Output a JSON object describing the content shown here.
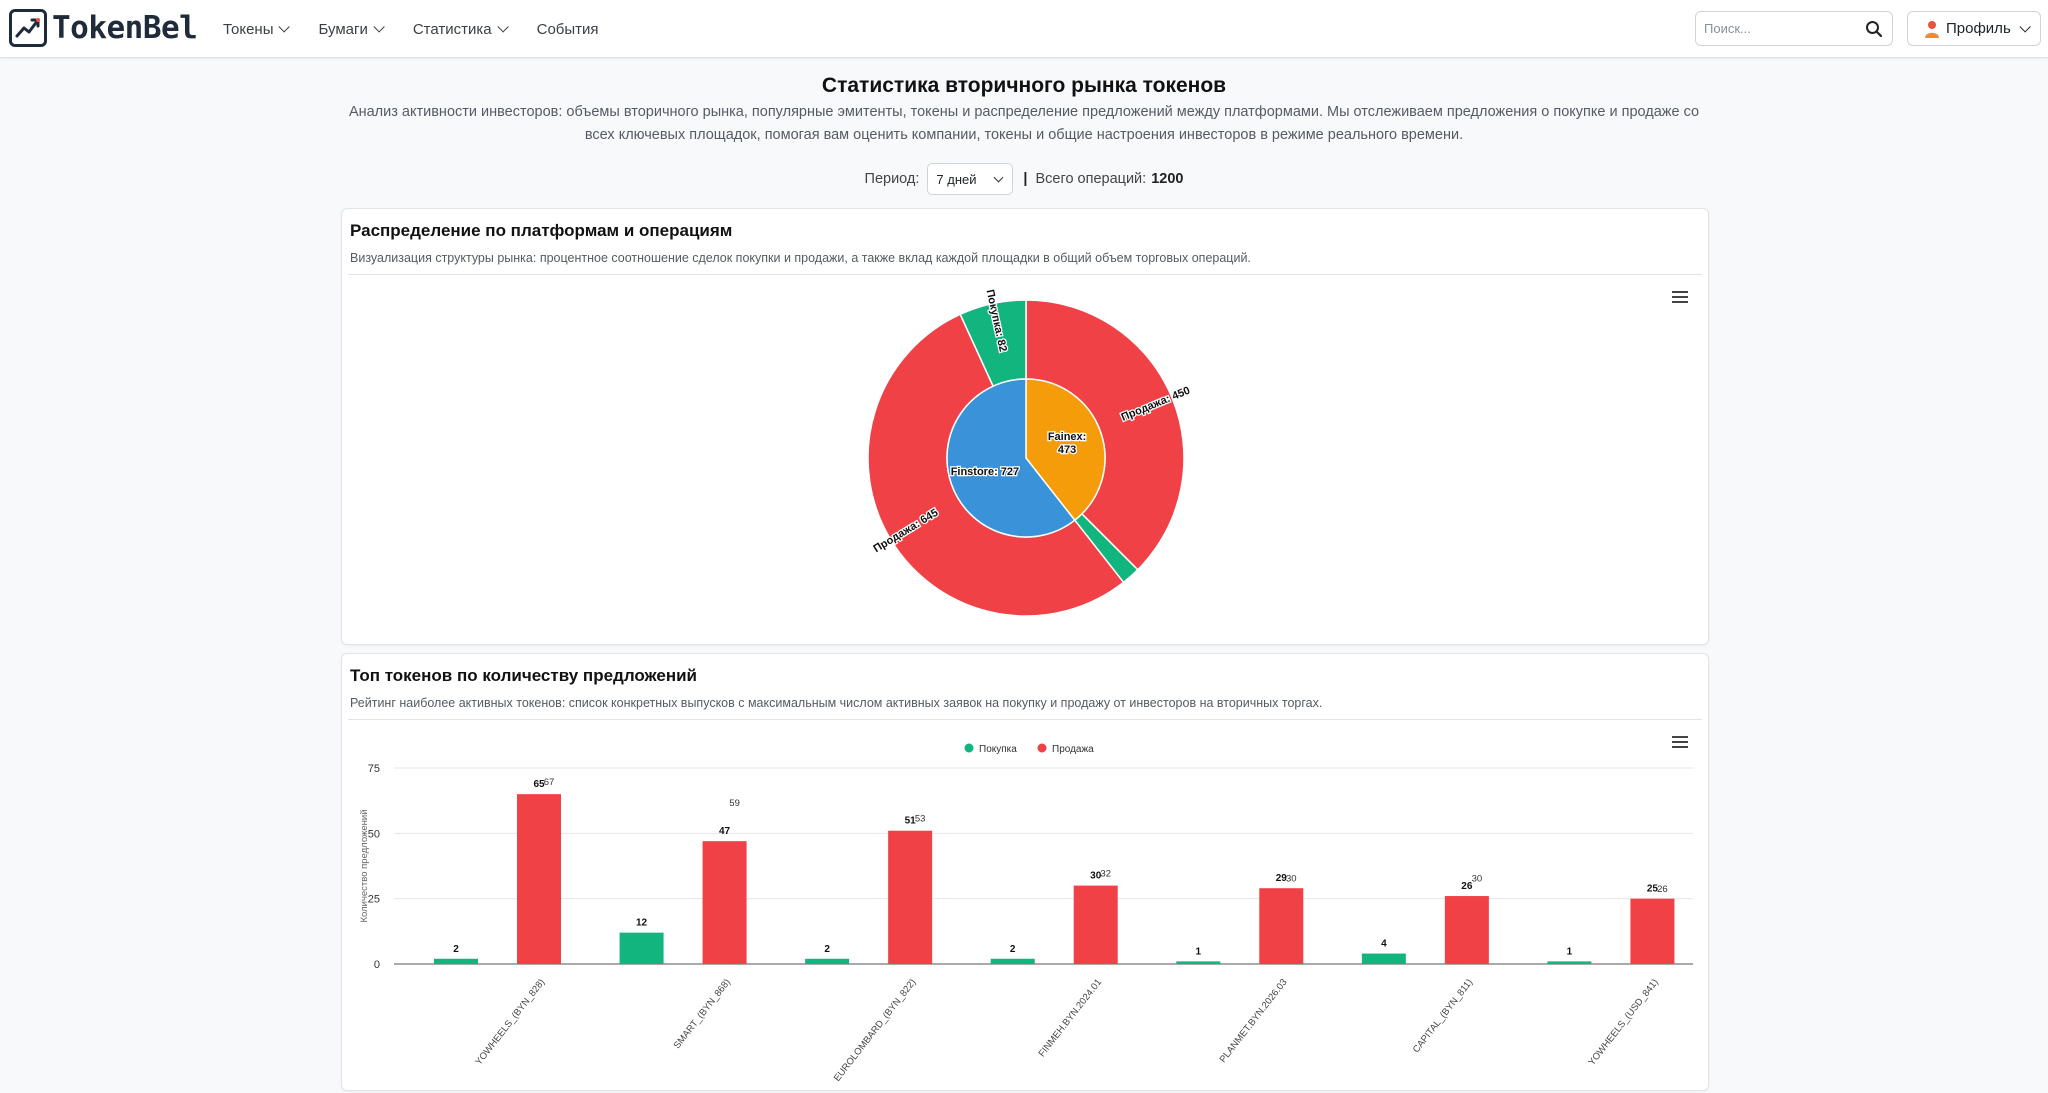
{
  "navbar": {
    "logo_text": "TokenBel",
    "links": [
      {
        "label": "Токены",
        "dropdown": true
      },
      {
        "label": "Бумаги",
        "dropdown": true
      },
      {
        "label": "Статистика",
        "dropdown": true
      },
      {
        "label": "События",
        "dropdown": false
      }
    ],
    "search_placeholder": "Поиск...",
    "profile_label": "Профиль",
    "icons": [
      "chart-line-icon",
      "search-icon",
      "user-icon",
      "chevron-down-icon"
    ]
  },
  "header": {
    "title": "Статистика вторичного рынка токенов",
    "description": "Анализ активности инвесторов: объемы вторичного рынка, популярные эмитенты, токены и распределение предложений между платформами. Мы отслеживаем предложения о покупке и продаже со всех ключевых площадок, помогая вам оценить компании, токены и общие настроения инвесторов в режиме реального времени.",
    "period_label": "Период:",
    "period_value": "7 дней",
    "separator": "|",
    "total_label": "Всего операций:",
    "total_value": "1200"
  },
  "colors": {
    "buy": "#13b57f",
    "sell": "#ef4146",
    "finstore": "#3a93d9",
    "fainex": "#f59c0b"
  },
  "card1": {
    "title": "Распределение по платформам и операциям",
    "description": "Визуализация структуры рынка: процентное соотношение сделок покупки и продажи, а также вклад каждой площадки в общий объем торговых операций."
  },
  "card2": {
    "title": "Топ токенов по количеству предложений",
    "description": "Рейтинг наиболее активных токенов: список конкретных выпусков с максимальным числом активных заявок на покупку и продажу от инвесторов на вторичных торгах."
  },
  "chart_data": [
    {
      "type": "pie",
      "inner": [
        {
          "name": "Fainex",
          "value": 473,
          "label": "Fainex: 473"
        },
        {
          "name": "Finstore",
          "value": 727,
          "label": "Finstore: 727"
        }
      ],
      "outer": [
        {
          "platform": "Fainex",
          "op": "Продажа",
          "value": 450,
          "label": "Продажа: 450"
        },
        {
          "platform": "Fainex",
          "op": "Покупка",
          "value": 23,
          "label": ""
        },
        {
          "platform": "Finstore",
          "op": "Продажа",
          "value": 645,
          "label": "Продажа: 645"
        },
        {
          "platform": "Finstore",
          "op": "Покупка",
          "value": 82,
          "label": "Покупка: 82"
        }
      ]
    },
    {
      "type": "bar",
      "legend": [
        "Покупка",
        "Продажа"
      ],
      "legend_position": "top-center",
      "ylabel": "Количество предложений",
      "yticks": [
        0,
        25,
        50,
        75
      ],
      "ylim": [
        0,
        75
      ],
      "grid": true,
      "categories": [
        "YOWHEELS_(BYN_828)",
        "SMART_(BYN_868)",
        "EUROLOMBARD_(BYN_822)",
        "FINMEH.BYN.2024.01",
        "PLANMET.BYN.2026.03",
        "CAPITAL_(BYN_811)",
        "YOWHEELS_(USD_841)"
      ],
      "series": [
        {
          "name": "Покупка",
          "values": [
            2,
            12,
            2,
            2,
            1,
            4,
            1
          ]
        },
        {
          "name": "Продажа",
          "values": [
            65,
            47,
            51,
            30,
            29,
            26,
            25
          ]
        }
      ],
      "totals": [
        67,
        59,
        53,
        32,
        30,
        30,
        26
      ]
    }
  ]
}
